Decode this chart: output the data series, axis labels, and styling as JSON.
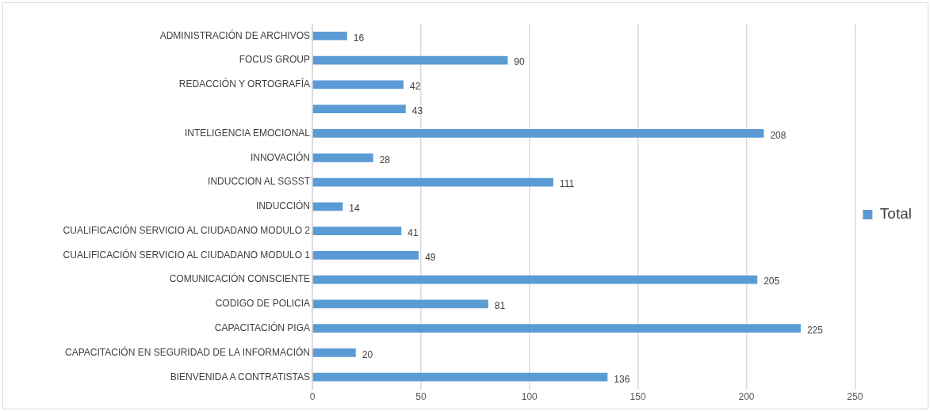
{
  "chart_data": {
    "type": "bar",
    "orientation": "horizontal",
    "categories": [
      "ADMINISTRACIÓN DE ARCHIVOS",
      "FOCUS GROUP",
      "REDACCIÓN Y ORTOGRAFÍA",
      null,
      "INTELIGENCIA EMOCIONAL",
      "INNOVACIÓN",
      "INDUCCION AL SGSST",
      "INDUCCIÓN",
      "CUALIFICACIÓN SERVICIO AL CIUDADANO MODULO 2",
      "CUALIFICACIÓN SERVICIO AL CIUDADANO MODULO 1",
      "COMUNICACIÓN CONSCIENTE",
      "CODIGO DE POLICIA",
      "CAPACITACIÓN PIGA",
      "CAPACITACIÓN EN SEGURIDAD DE LA INFORMACIÓN",
      "BIENVENIDA A CONTRATISTAS"
    ],
    "series": [
      {
        "name": "Total",
        "color": "#5b9bd5",
        "values": [
          16,
          90,
          42,
          43,
          208,
          28,
          111,
          14,
          41,
          49,
          205,
          81,
          225,
          20,
          136
        ]
      }
    ],
    "xlim": [
      0,
      250
    ],
    "xticks": [
      0,
      50,
      100,
      150,
      200,
      250
    ],
    "grid": "x",
    "legend": "right",
    "data_labels": true
  }
}
